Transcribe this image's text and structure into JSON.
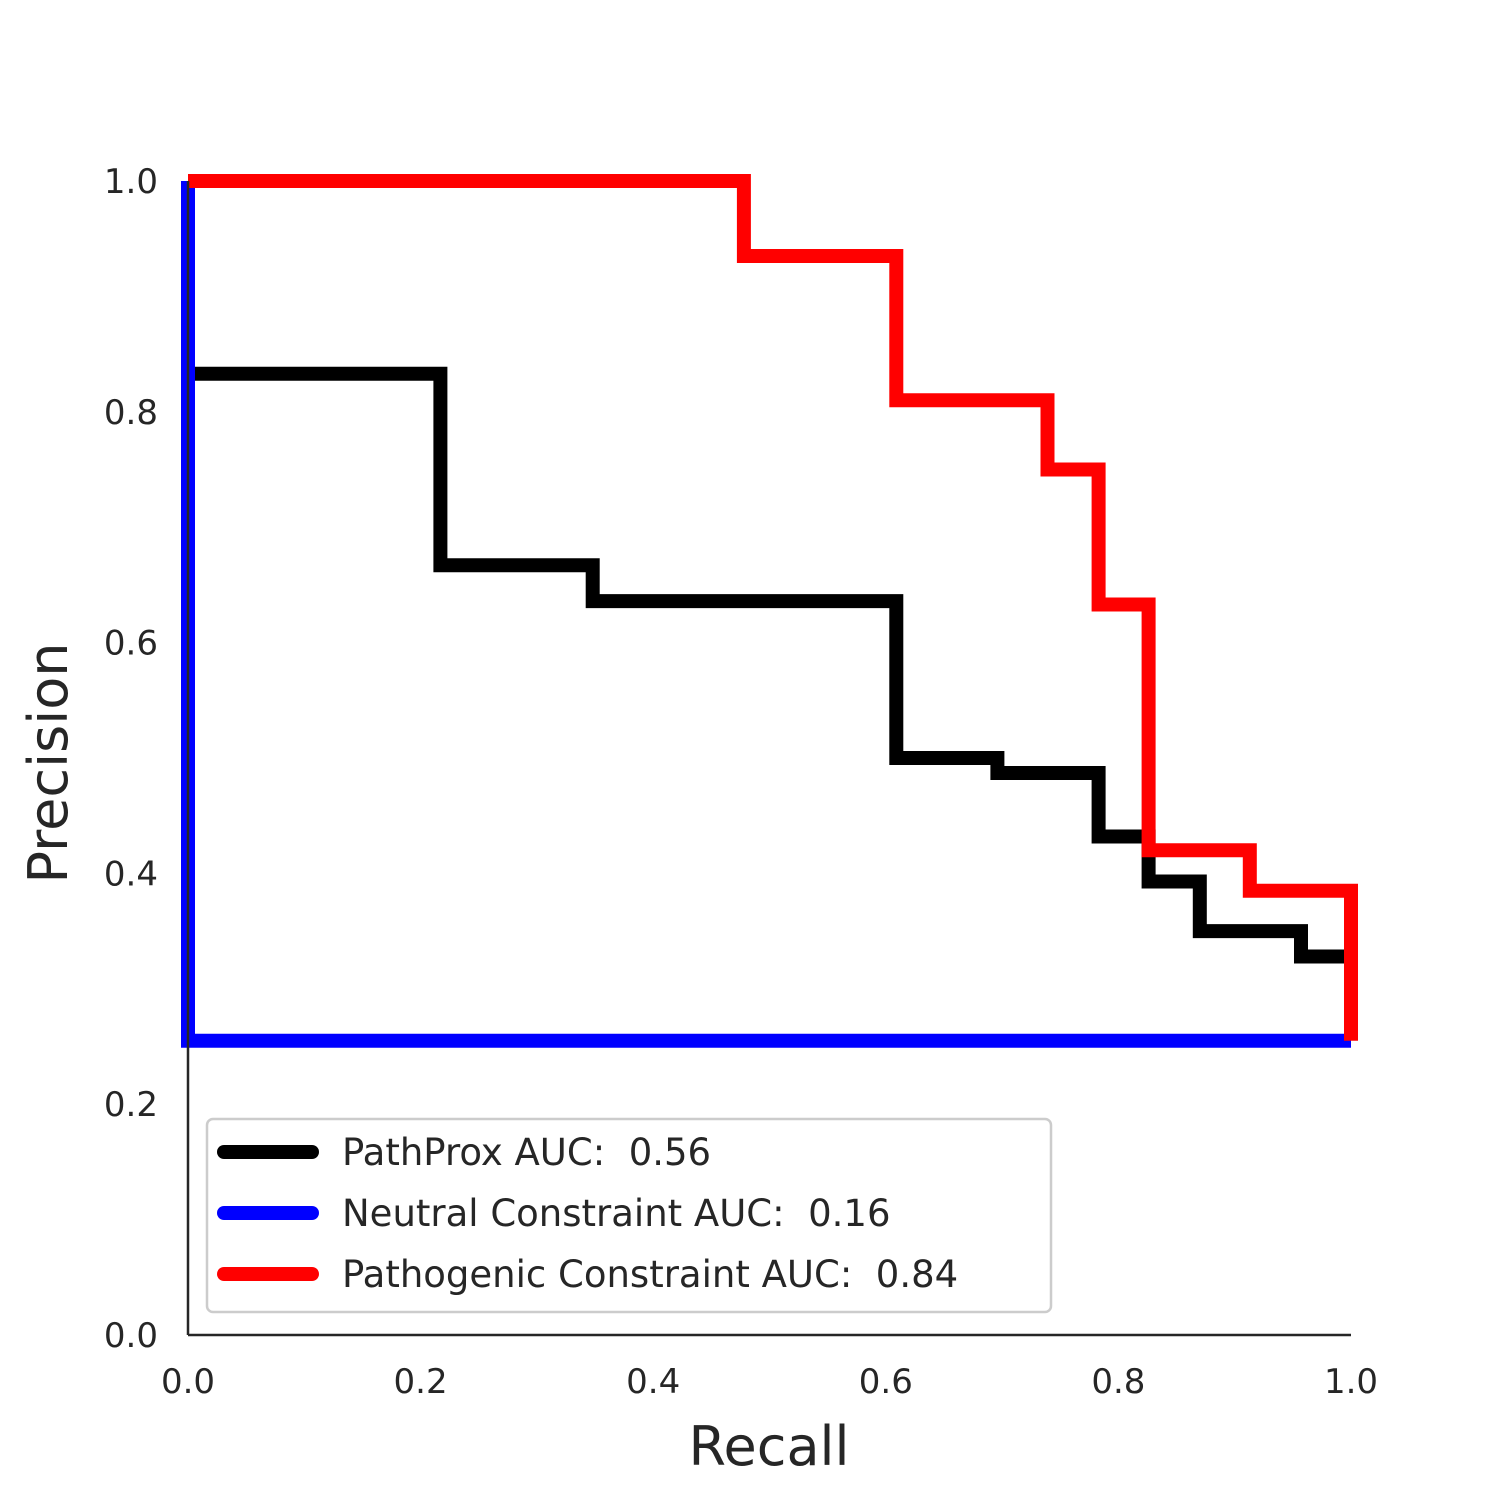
{
  "chart_data": {
    "type": "line",
    "title": "",
    "xlabel": "Recall",
    "ylabel": "Precision",
    "xlim": [
      0.0,
      1.0
    ],
    "ylim": [
      0.0,
      1.0
    ],
    "xticks": [
      "0.0",
      "0.2",
      "0.4",
      "0.6",
      "0.8",
      "1.0"
    ],
    "yticks": [
      "0.0",
      "0.2",
      "0.4",
      "0.6",
      "0.8",
      "1.0"
    ],
    "grid": false,
    "legend_position": "lower-left",
    "step": "post",
    "series": [
      {
        "name": "PathProx AUC:  0.56",
        "color": "#000000",
        "x": [
          0.0,
          0.0,
          0.217,
          0.217,
          0.348,
          0.348,
          0.609,
          0.609,
          0.696,
          0.696,
          0.783,
          0.783,
          0.826,
          0.826,
          0.87,
          0.87,
          0.957,
          0.957,
          1.0
        ],
        "y": [
          0.25,
          0.833,
          0.833,
          0.667,
          0.667,
          0.636,
          0.636,
          0.5,
          0.5,
          0.487,
          0.487,
          0.432,
          0.432,
          0.393,
          0.393,
          0.35,
          0.35,
          0.328,
          0.328
        ]
      },
      {
        "name": "Neutral Constraint AUC:  0.16",
        "color": "#0000ff",
        "x": [
          0.0,
          0.0,
          1.0
        ],
        "y": [
          1.0,
          0.255,
          0.255
        ]
      },
      {
        "name": "Pathogenic Constraint AUC:  0.84",
        "color": "#ff0000",
        "x": [
          0.0,
          0.478,
          0.478,
          0.609,
          0.609,
          0.739,
          0.739,
          0.783,
          0.783,
          0.826,
          0.826,
          0.913,
          0.913,
          1.0,
          1.0
        ],
        "y": [
          1.0,
          1.0,
          0.935,
          0.935,
          0.81,
          0.81,
          0.75,
          0.75,
          0.633,
          0.633,
          0.42,
          0.42,
          0.385,
          0.385,
          0.255
        ]
      }
    ]
  }
}
